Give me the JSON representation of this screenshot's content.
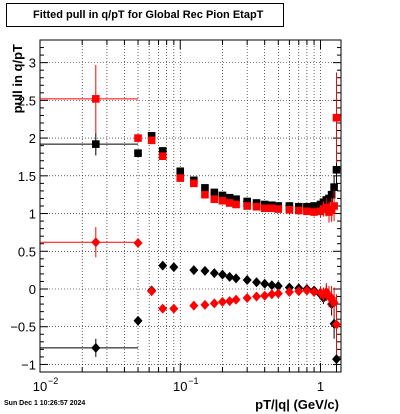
{
  "title": "Fitted pull in q/pT for Global Rec Pion EtapT",
  "timestamp": "Sun Dec  1 10:26:57 2024",
  "chart_data": {
    "type": "scatter",
    "title": "Fitted pull in q/pT for Global Rec Pion EtapT",
    "xlabel": "pT/|q| (GeV/c)",
    "ylabel": "pull in q/pT",
    "xscale": "log",
    "xlim": [
      0.01,
      1.4
    ],
    "ylim": [
      -1.1,
      3.3
    ],
    "grid": true,
    "x_ticks": [
      {
        "value": 0.01,
        "label": "10"
      },
      {
        "value": 0.1,
        "label": "10"
      },
      {
        "value": 1,
        "label": "1"
      }
    ],
    "x_tick_exponents": [
      "−2",
      "−1",
      ""
    ],
    "y_ticks": [
      -1,
      -0.5,
      0,
      0.5,
      1,
      1.5,
      2,
      2.5,
      3
    ],
    "y_tick_labels": [
      "−1",
      "−0.5",
      "0",
      "0.5",
      "1",
      "1.5",
      "2",
      "2.5",
      "3"
    ],
    "series": [
      {
        "marker": "square",
        "color": "#000000",
        "points": [
          [
            0.025,
            1.92,
            0.025,
            0.15
          ],
          [
            0.05,
            1.8,
            0.003,
            0.03
          ],
          [
            0.0625,
            2.03,
            0.003,
            0.03
          ],
          [
            0.075,
            1.83,
            0.004,
            0.03
          ],
          [
            0.1,
            1.56,
            0.005,
            0.02
          ],
          [
            0.125,
            1.44,
            0.007,
            0.02
          ],
          [
            0.15,
            1.34,
            0.007,
            0.02
          ],
          [
            0.175,
            1.28,
            0.01,
            0.02
          ],
          [
            0.2,
            1.24,
            0.01,
            0.02
          ],
          [
            0.225,
            1.21,
            0.01,
            0.02
          ],
          [
            0.25,
            1.19,
            0.01,
            0.02
          ],
          [
            0.3,
            1.16,
            0.02,
            0.02
          ],
          [
            0.35,
            1.14,
            0.02,
            0.02
          ],
          [
            0.4,
            1.12,
            0.02,
            0.02
          ],
          [
            0.45,
            1.11,
            0.02,
            0.02
          ],
          [
            0.5,
            1.1,
            0.02,
            0.02
          ],
          [
            0.6,
            1.1,
            0.04,
            0.03
          ],
          [
            0.7,
            1.09,
            0.04,
            0.03
          ],
          [
            0.8,
            1.09,
            0.04,
            0.03
          ],
          [
            0.9,
            1.1,
            0.04,
            0.03
          ],
          [
            1.0,
            1.12,
            0.04,
            0.04
          ],
          [
            1.05,
            1.15,
            0.02,
            0.05
          ],
          [
            1.1,
            1.18,
            0.02,
            0.06
          ],
          [
            1.15,
            1.2,
            0.02,
            0.08
          ],
          [
            1.2,
            1.25,
            0.02,
            0.1
          ],
          [
            1.25,
            1.35,
            0.02,
            0.15
          ],
          [
            1.3,
            1.58,
            0.02,
            0.25
          ]
        ]
      },
      {
        "marker": "square",
        "color": "#ff0000",
        "points": [
          [
            0.025,
            2.52,
            0.025,
            0.45
          ],
          [
            0.05,
            2.0,
            0.003,
            0.05
          ],
          [
            0.0625,
            1.97,
            0.003,
            0.05
          ],
          [
            0.075,
            1.76,
            0.004,
            0.04
          ],
          [
            0.1,
            1.47,
            0.005,
            0.03
          ],
          [
            0.125,
            1.4,
            0.007,
            0.03
          ],
          [
            0.15,
            1.25,
            0.007,
            0.02
          ],
          [
            0.175,
            1.19,
            0.01,
            0.02
          ],
          [
            0.2,
            1.17,
            0.01,
            0.02
          ],
          [
            0.225,
            1.14,
            0.01,
            0.02
          ],
          [
            0.25,
            1.12,
            0.01,
            0.02
          ],
          [
            0.3,
            1.1,
            0.02,
            0.02
          ],
          [
            0.35,
            1.09,
            0.02,
            0.02
          ],
          [
            0.4,
            1.07,
            0.02,
            0.02
          ],
          [
            0.45,
            1.07,
            0.02,
            0.02
          ],
          [
            0.5,
            1.06,
            0.02,
            0.02
          ],
          [
            0.6,
            1.05,
            0.04,
            0.03
          ],
          [
            0.7,
            1.04,
            0.04,
            0.04
          ],
          [
            0.8,
            1.03,
            0.04,
            0.05
          ],
          [
            0.9,
            1.02,
            0.04,
            0.06
          ],
          [
            1.0,
            1.03,
            0.04,
            0.08
          ],
          [
            1.05,
            1.06,
            0.02,
            0.1
          ],
          [
            1.1,
            1.08,
            0.02,
            0.12
          ],
          [
            1.15,
            1.02,
            0.02,
            0.14
          ],
          [
            1.2,
            1.05,
            0.02,
            0.16
          ],
          [
            1.25,
            1.1,
            0.02,
            0.2
          ],
          [
            1.3,
            2.27,
            0.02,
            0.6
          ]
        ]
      },
      {
        "marker": "diamond",
        "color": "#000000",
        "points": [
          [
            0.025,
            -0.78,
            0.025,
            0.12
          ],
          [
            0.05,
            -0.42,
            0.003,
            0.03
          ],
          [
            0.0625,
            -0.02,
            0.003,
            0.03
          ],
          [
            0.075,
            0.31,
            0.004,
            0.02
          ],
          [
            0.09,
            0.29,
            0.005,
            0.02
          ],
          [
            0.125,
            0.25,
            0.007,
            0.02
          ],
          [
            0.15,
            0.24,
            0.007,
            0.02
          ],
          [
            0.175,
            0.21,
            0.01,
            0.02
          ],
          [
            0.2,
            0.19,
            0.01,
            0.02
          ],
          [
            0.225,
            0.16,
            0.01,
            0.02
          ],
          [
            0.25,
            0.14,
            0.01,
            0.02
          ],
          [
            0.3,
            0.12,
            0.02,
            0.02
          ],
          [
            0.35,
            0.09,
            0.02,
            0.02
          ],
          [
            0.4,
            0.07,
            0.02,
            0.02
          ],
          [
            0.45,
            0.05,
            0.02,
            0.02
          ],
          [
            0.5,
            0.04,
            0.02,
            0.02
          ],
          [
            0.6,
            0.02,
            0.04,
            0.02
          ],
          [
            0.7,
            0.01,
            0.04,
            0.02
          ],
          [
            0.8,
            0.0,
            0.04,
            0.03
          ],
          [
            0.9,
            -0.02,
            0.04,
            0.04
          ],
          [
            1.0,
            -0.07,
            0.04,
            0.05
          ],
          [
            1.05,
            -0.12,
            0.02,
            0.08
          ],
          [
            1.1,
            -0.05,
            0.02,
            0.1
          ],
          [
            1.15,
            -0.1,
            0.02,
            0.12
          ],
          [
            1.2,
            -0.2,
            0.02,
            0.15
          ],
          [
            1.25,
            -0.46,
            0.02,
            0.2
          ],
          [
            1.3,
            -0.93,
            0.02,
            0.3
          ]
        ]
      },
      {
        "marker": "diamond",
        "color": "#ff0000",
        "points": [
          [
            0.025,
            0.62,
            0.025,
            0.2
          ],
          [
            0.05,
            0.61,
            0.003,
            0.03
          ],
          [
            0.0625,
            -0.03,
            0.003,
            0.03
          ],
          [
            0.075,
            -0.26,
            0.004,
            0.02
          ],
          [
            0.09,
            -0.26,
            0.005,
            0.02
          ],
          [
            0.125,
            -0.22,
            0.007,
            0.02
          ],
          [
            0.15,
            -0.21,
            0.007,
            0.02
          ],
          [
            0.175,
            -0.19,
            0.01,
            0.02
          ],
          [
            0.2,
            -0.17,
            0.01,
            0.02
          ],
          [
            0.225,
            -0.16,
            0.01,
            0.02
          ],
          [
            0.25,
            -0.14,
            0.01,
            0.02
          ],
          [
            0.3,
            -0.12,
            0.02,
            0.02
          ],
          [
            0.35,
            -0.1,
            0.02,
            0.02
          ],
          [
            0.4,
            -0.09,
            0.02,
            0.02
          ],
          [
            0.45,
            -0.07,
            0.02,
            0.02
          ],
          [
            0.5,
            -0.06,
            0.02,
            0.02
          ],
          [
            0.6,
            -0.04,
            0.04,
            0.03
          ],
          [
            0.7,
            -0.03,
            0.04,
            0.04
          ],
          [
            0.8,
            -0.02,
            0.04,
            0.05
          ],
          [
            0.9,
            -0.04,
            0.04,
            0.06
          ],
          [
            1.0,
            -0.05,
            0.04,
            0.08
          ],
          [
            1.05,
            -0.08,
            0.02,
            0.1
          ],
          [
            1.1,
            -0.04,
            0.02,
            0.12
          ],
          [
            1.15,
            -0.1,
            0.02,
            0.14
          ],
          [
            1.2,
            -0.12,
            0.02,
            0.16
          ],
          [
            1.25,
            -0.18,
            0.02,
            0.2
          ],
          [
            1.3,
            -0.47,
            0.02,
            0.4
          ]
        ]
      }
    ]
  }
}
